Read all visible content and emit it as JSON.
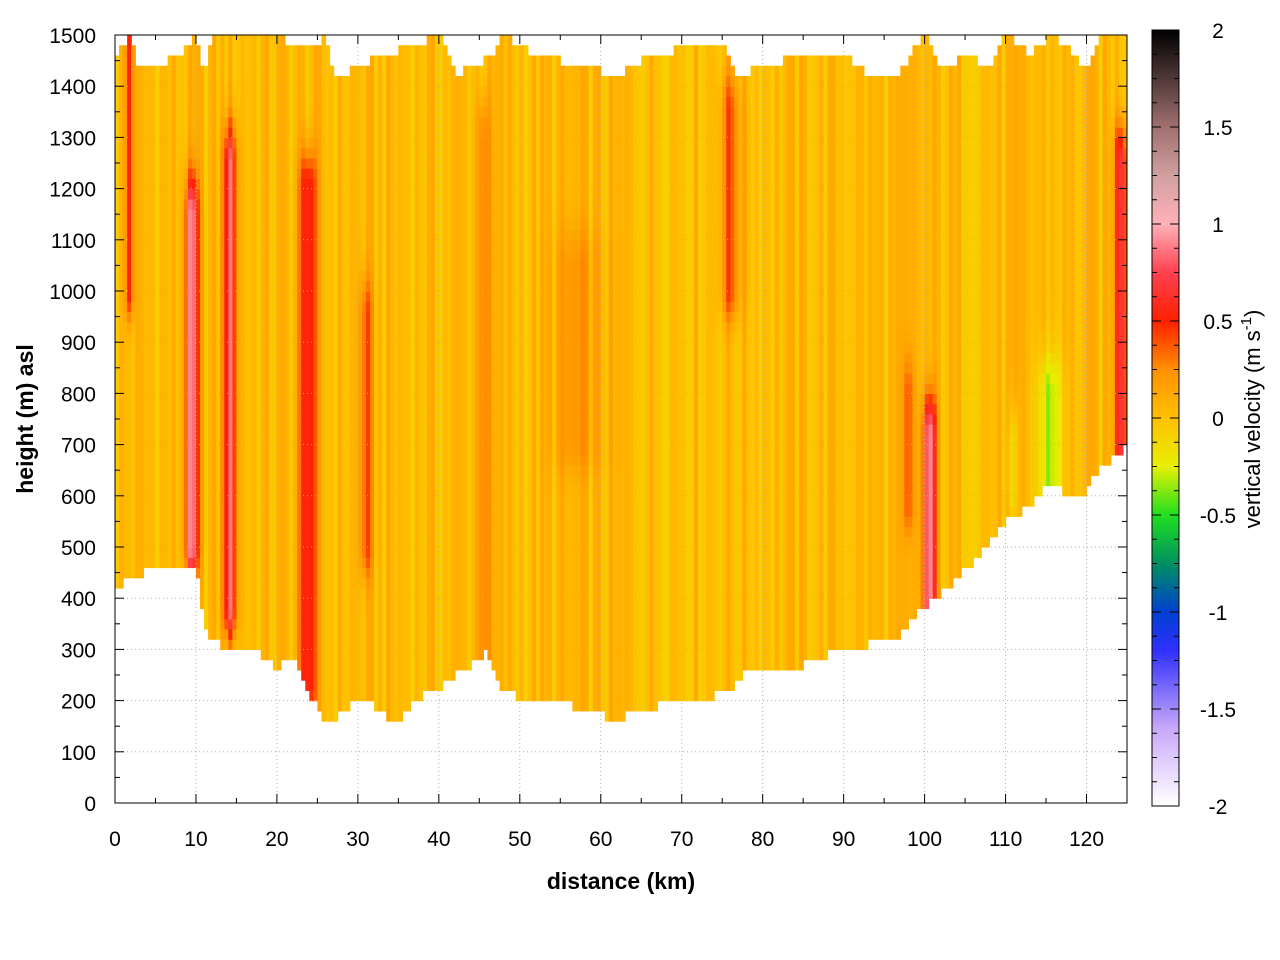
{
  "chart_data": {
    "type": "heatmap",
    "xlabel": "distance (km)",
    "ylabel": "height (m) asl",
    "xlim": [
      0,
      125
    ],
    "ylim": [
      0,
      1500
    ],
    "xticks": [
      0,
      10,
      20,
      30,
      40,
      50,
      60,
      70,
      80,
      90,
      100,
      110,
      120
    ],
    "xtick_labels": [
      "0",
      "10",
      "20",
      "30",
      "40",
      "50",
      "60",
      "70",
      "80",
      "90",
      "100",
      "110",
      "120"
    ],
    "yticks": [
      0,
      100,
      200,
      300,
      400,
      500,
      600,
      700,
      800,
      900,
      1000,
      1100,
      1200,
      1300,
      1400,
      1500
    ],
    "ytick_labels": [
      "0",
      "100",
      "200",
      "300",
      "400",
      "500",
      "600",
      "700",
      "800",
      "900",
      "1000",
      "1100",
      "1200",
      "1300",
      "1400",
      "1500"
    ],
    "grid": true,
    "colorbar": {
      "label_main": "vertical velocity (m s",
      "label_sup": "-1",
      "label_close": ")",
      "range": [
        -2,
        2
      ],
      "ticks": [
        2,
        1.5,
        1,
        0.5,
        0,
        -0.5,
        -1,
        -1.5,
        -2
      ],
      "tick_labels": [
        "2",
        "1.5",
        "1",
        "0.5",
        "0",
        "-0.5",
        "-1",
        "-1.5",
        "-2"
      ],
      "stops": [
        {
          "value": -2,
          "color": "#ffffff"
        },
        {
          "value": -1.6,
          "color": "#c8a8f8"
        },
        {
          "value": -1.2,
          "color": "#3030ff"
        },
        {
          "value": -1.0,
          "color": "#0040d0"
        },
        {
          "value": -0.75,
          "color": "#009060"
        },
        {
          "value": -0.5,
          "color": "#20e020"
        },
        {
          "value": -0.25,
          "color": "#e8f000"
        },
        {
          "value": 0,
          "color": "#ffc000"
        },
        {
          "value": 0.25,
          "color": "#ff9000"
        },
        {
          "value": 0.5,
          "color": "#ff2000"
        },
        {
          "value": 0.75,
          "color": "#ff4050"
        },
        {
          "value": 1.0,
          "color": "#ffb0b8"
        },
        {
          "value": 1.25,
          "color": "#d0a0a0"
        },
        {
          "value": 1.5,
          "color": "#a07070"
        },
        {
          "value": 2.0,
          "color": "#000000"
        }
      ]
    },
    "background_value": 0.03,
    "bottom_boundary": [
      [
        0,
        415
      ],
      [
        2,
        440
      ],
      [
        4,
        455
      ],
      [
        6,
        458
      ],
      [
        8,
        470
      ],
      [
        10,
        460
      ],
      [
        11,
        360
      ],
      [
        12,
        320
      ],
      [
        14,
        300
      ],
      [
        16,
        300
      ],
      [
        18,
        290
      ],
      [
        20,
        265
      ],
      [
        22,
        290
      ],
      [
        24,
        215
      ],
      [
        26,
        150
      ],
      [
        28,
        175
      ],
      [
        30,
        210
      ],
      [
        32,
        190
      ],
      [
        35,
        155
      ],
      [
        37,
        200
      ],
      [
        40,
        225
      ],
      [
        42,
        250
      ],
      [
        44,
        270
      ],
      [
        46,
        295
      ],
      [
        48,
        220
      ],
      [
        50,
        205
      ],
      [
        52,
        205
      ],
      [
        54,
        190
      ],
      [
        56,
        195
      ],
      [
        58,
        180
      ],
      [
        60,
        175
      ],
      [
        62,
        160
      ],
      [
        64,
        185
      ],
      [
        66,
        180
      ],
      [
        68,
        200
      ],
      [
        70,
        200
      ],
      [
        73,
        205
      ],
      [
        76,
        225
      ],
      [
        78,
        255
      ],
      [
        80,
        250
      ],
      [
        84,
        265
      ],
      [
        88,
        290
      ],
      [
        92,
        305
      ],
      [
        95,
        325
      ],
      [
        97,
        330
      ],
      [
        99,
        370
      ],
      [
        101,
        395
      ],
      [
        103,
        420
      ],
      [
        105,
        455
      ],
      [
        108,
        510
      ],
      [
        110,
        550
      ],
      [
        113,
        580
      ],
      [
        115,
        625
      ],
      [
        117,
        610
      ],
      [
        119,
        590
      ],
      [
        121,
        640
      ],
      [
        123,
        670
      ],
      [
        125,
        700
      ]
    ],
    "top_boundary": [
      [
        0,
        1460
      ],
      [
        2,
        1500
      ],
      [
        3,
        1430
      ],
      [
        5,
        1440
      ],
      [
        8,
        1460
      ],
      [
        10,
        1500
      ],
      [
        11,
        1420
      ],
      [
        12,
        1490
      ],
      [
        14,
        1500
      ],
      [
        20,
        1495
      ],
      [
        24,
        1470
      ],
      [
        26,
        1500
      ],
      [
        27,
        1415
      ],
      [
        30,
        1440
      ],
      [
        35,
        1470
      ],
      [
        40,
        1500
      ],
      [
        42,
        1420
      ],
      [
        44,
        1440
      ],
      [
        47,
        1460
      ],
      [
        48,
        1500
      ],
      [
        50,
        1475
      ],
      [
        55,
        1450
      ],
      [
        58,
        1440
      ],
      [
        62,
        1420
      ],
      [
        65,
        1450
      ],
      [
        70,
        1475
      ],
      [
        75,
        1480
      ],
      [
        77,
        1415
      ],
      [
        80,
        1445
      ],
      [
        85,
        1455
      ],
      [
        90,
        1460
      ],
      [
        93,
        1420
      ],
      [
        97,
        1430
      ],
      [
        100,
        1500
      ],
      [
        102,
        1430
      ],
      [
        105,
        1460
      ],
      [
        108,
        1440
      ],
      [
        110,
        1500
      ],
      [
        113,
        1460
      ],
      [
        116,
        1500
      ],
      [
        118,
        1470
      ],
      [
        120,
        1430
      ],
      [
        122,
        1500
      ],
      [
        125,
        1500
      ]
    ],
    "features": [
      {
        "x": 1.8,
        "ymin": 1000,
        "ymax": 1500,
        "amp": 0.5,
        "halfwidth": 0.5
      },
      {
        "x": 9.5,
        "ymin": 500,
        "ymax": 1150,
        "amp": 0.85,
        "halfwidth": 0.8
      },
      {
        "x": 14.2,
        "ymin": 380,
        "ymax": 1250,
        "amp": 0.75,
        "halfwidth": 0.8
      },
      {
        "x": 23.8,
        "ymin": 230,
        "ymax": 1200,
        "amp": 0.6,
        "halfwidth": 1.0
      },
      {
        "x": 31,
        "ymin": 500,
        "ymax": 950,
        "amp": 0.35,
        "halfwidth": 0.8
      },
      {
        "x": 45.5,
        "ymin": 300,
        "ymax": 1300,
        "amp": 0.3,
        "halfwidth": 0.8
      },
      {
        "x": 57,
        "ymin": 700,
        "ymax": 1050,
        "amp": 0.15,
        "halfwidth": 3.0
      },
      {
        "x": 76,
        "ymin": 1000,
        "ymax": 1350,
        "amp": 0.35,
        "halfwidth": 1.2
      },
      {
        "x": 98,
        "ymin": 580,
        "ymax": 800,
        "amp": 0.3,
        "halfwidth": 0.6
      },
      {
        "x": 100.6,
        "ymin": 390,
        "ymax": 720,
        "amp": 0.9,
        "halfwidth": 0.8
      },
      {
        "x": 115.5,
        "ymin": 600,
        "ymax": 800,
        "amp": -0.35,
        "halfwidth": 1.5
      },
      {
        "x": 111,
        "ymin": 600,
        "ymax": 700,
        "amp": -0.25,
        "halfwidth": 0.6
      },
      {
        "x": 124.2,
        "ymin": 700,
        "ymax": 1250,
        "amp": 0.7,
        "halfwidth": 0.8
      }
    ]
  }
}
